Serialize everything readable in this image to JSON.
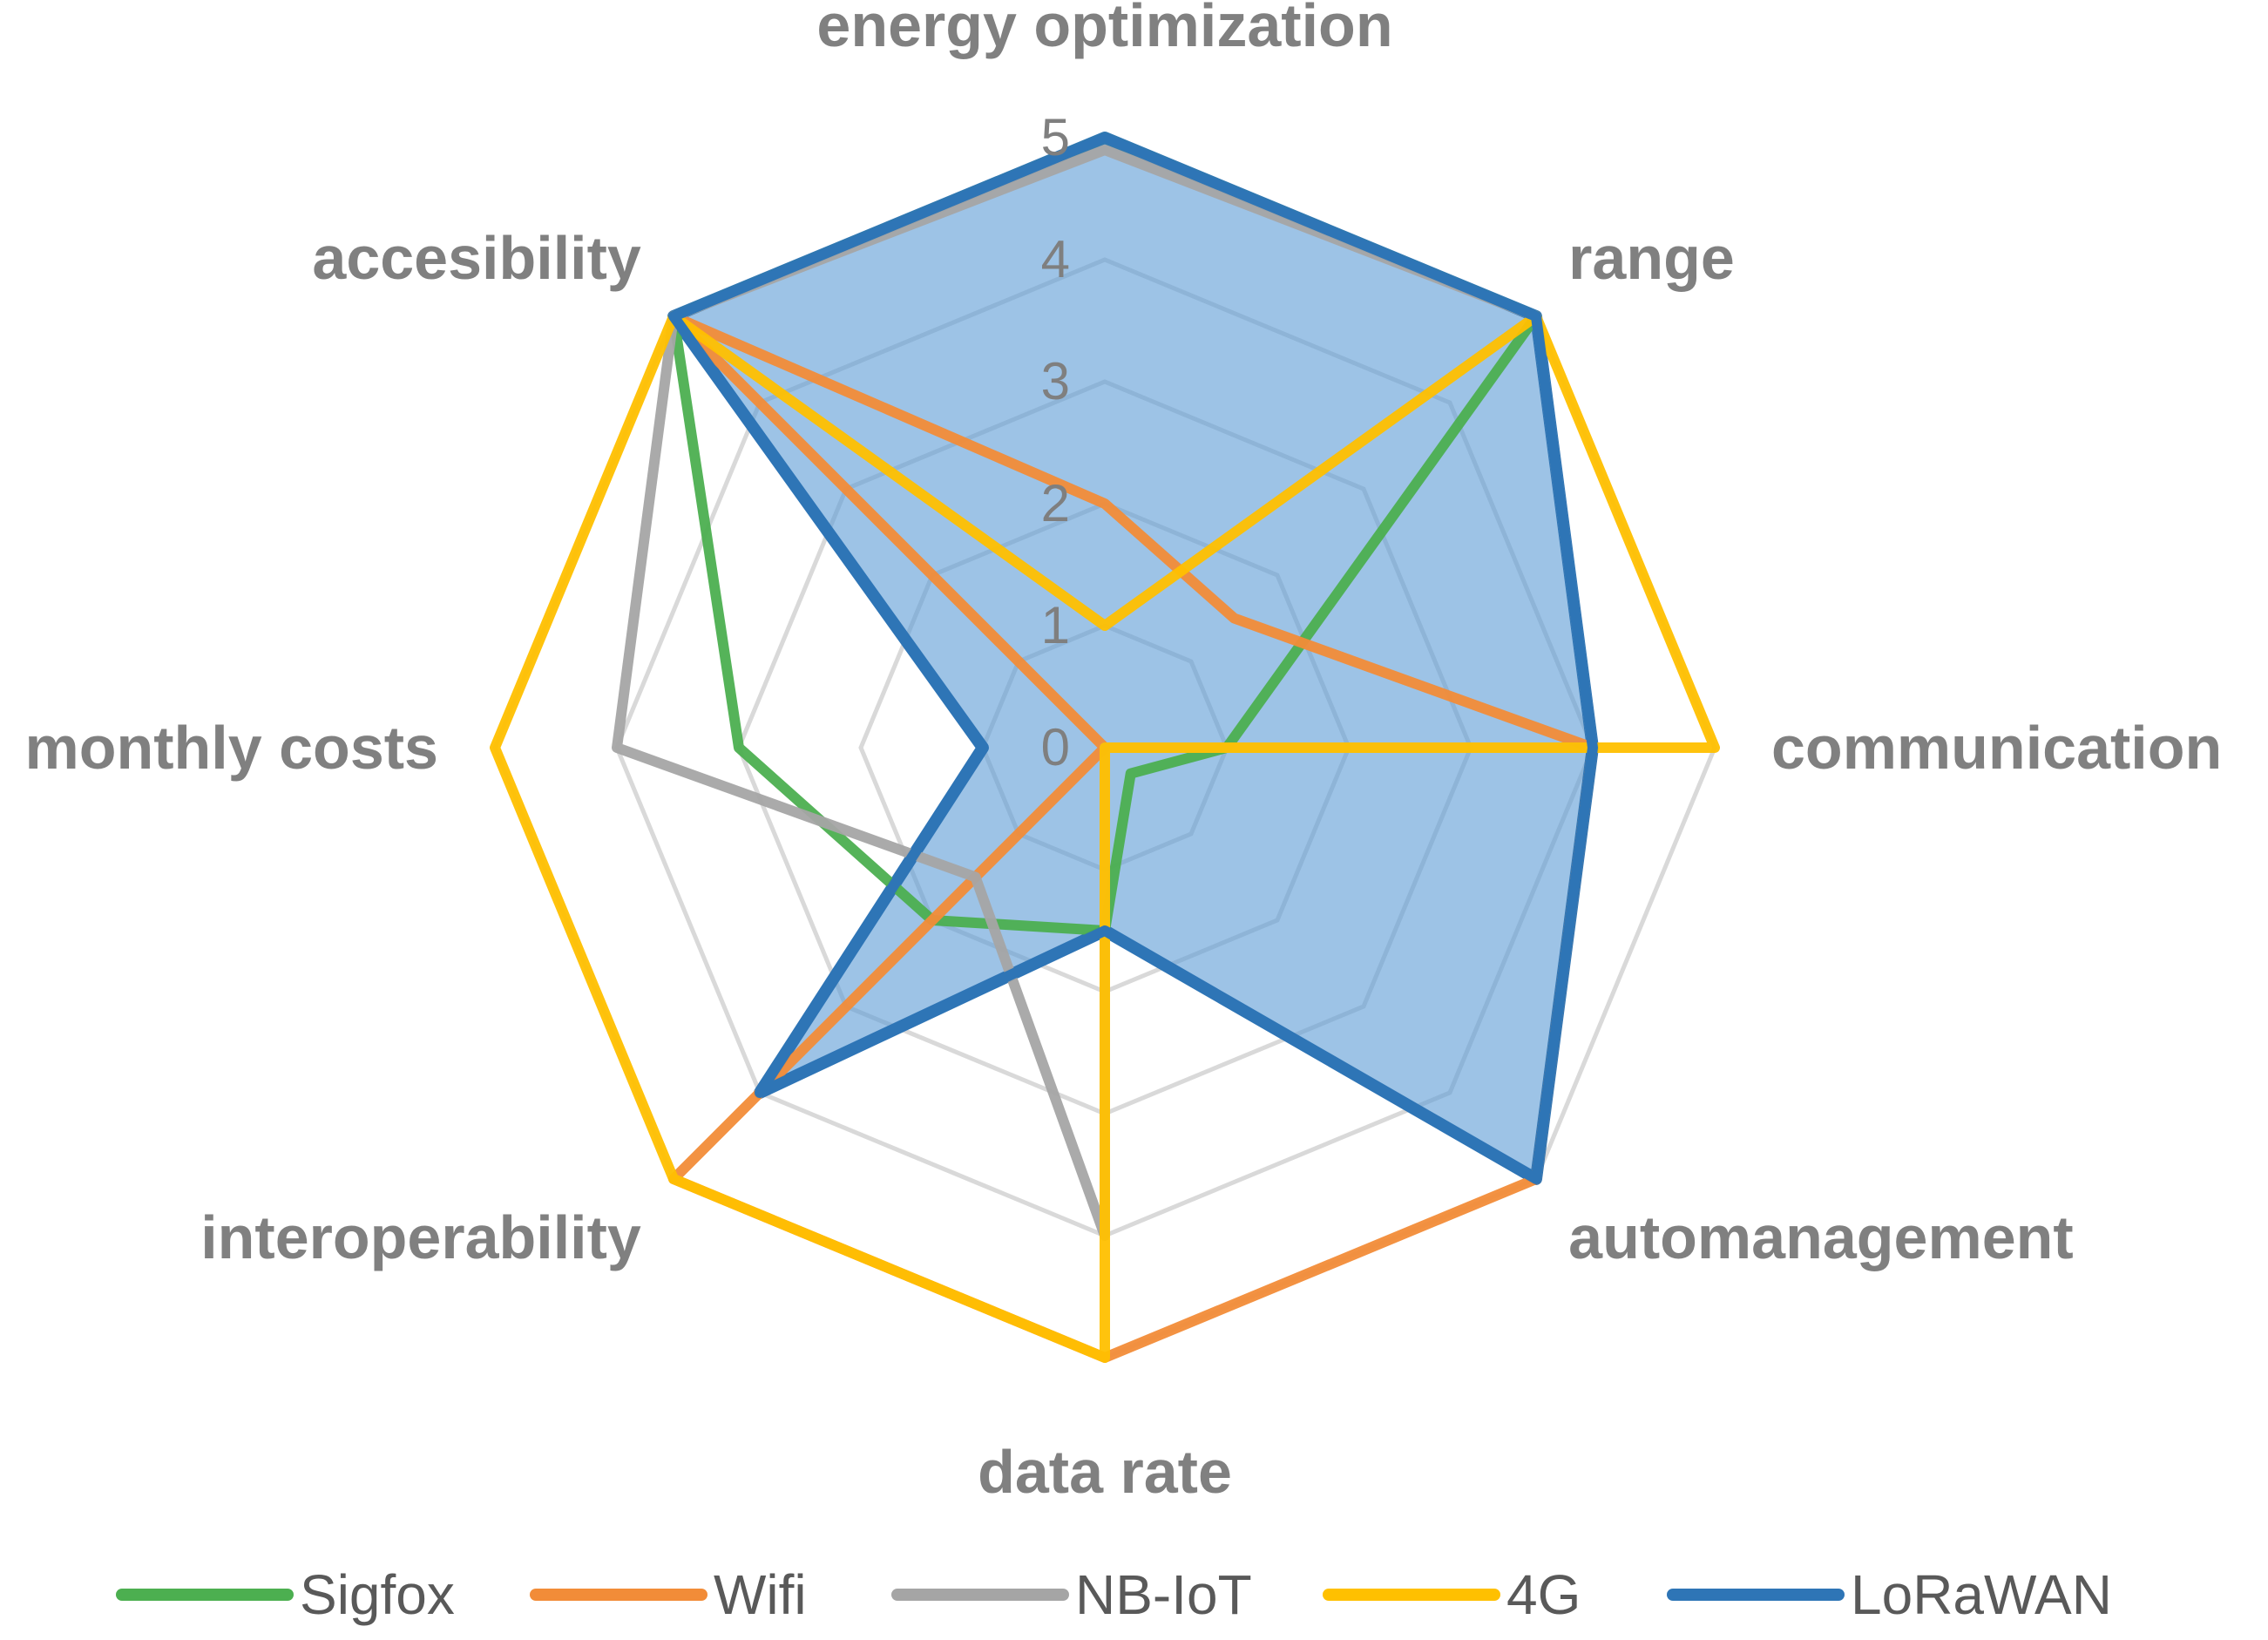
{
  "chart_data": {
    "type": "radar",
    "title": "",
    "axes": [
      "energy optimization",
      "range",
      "communication",
      "automanagement",
      "data rate",
      "interoperability",
      "monthly costs",
      "accesibility"
    ],
    "rlim": [
      0,
      5
    ],
    "ticks": [
      "0",
      "1",
      "2",
      "3",
      "4",
      "5"
    ],
    "grid": true,
    "legend_position": "bottom",
    "series": [
      {
        "name": "Sigfox",
        "color": "#4caf50",
        "filled": false,
        "values": [
          5,
          5,
          1,
          0.3,
          1.5,
          2,
          3,
          5
        ]
      },
      {
        "name": "Wifi",
        "color": "#f28c38",
        "filled": false,
        "values": [
          2,
          1.5,
          4,
          5,
          5,
          5,
          0,
          5
        ]
      },
      {
        "name": "NB-IoT",
        "color": "#a5a5a5",
        "filled": false,
        "values": [
          4.9,
          5,
          4,
          0,
          4,
          1.5,
          4,
          5
        ]
      },
      {
        "name": "4G",
        "color": "#ffc000",
        "filled": false,
        "values": [
          1,
          5,
          5,
          0,
          5,
          5,
          5,
          5
        ]
      },
      {
        "name": "LoRaWAN",
        "color": "#2e75b6",
        "filled": true,
        "fill_color": "#5b9bd5",
        "values": [
          5,
          5,
          4,
          5,
          1.5,
          4,
          1,
          5
        ]
      }
    ]
  }
}
